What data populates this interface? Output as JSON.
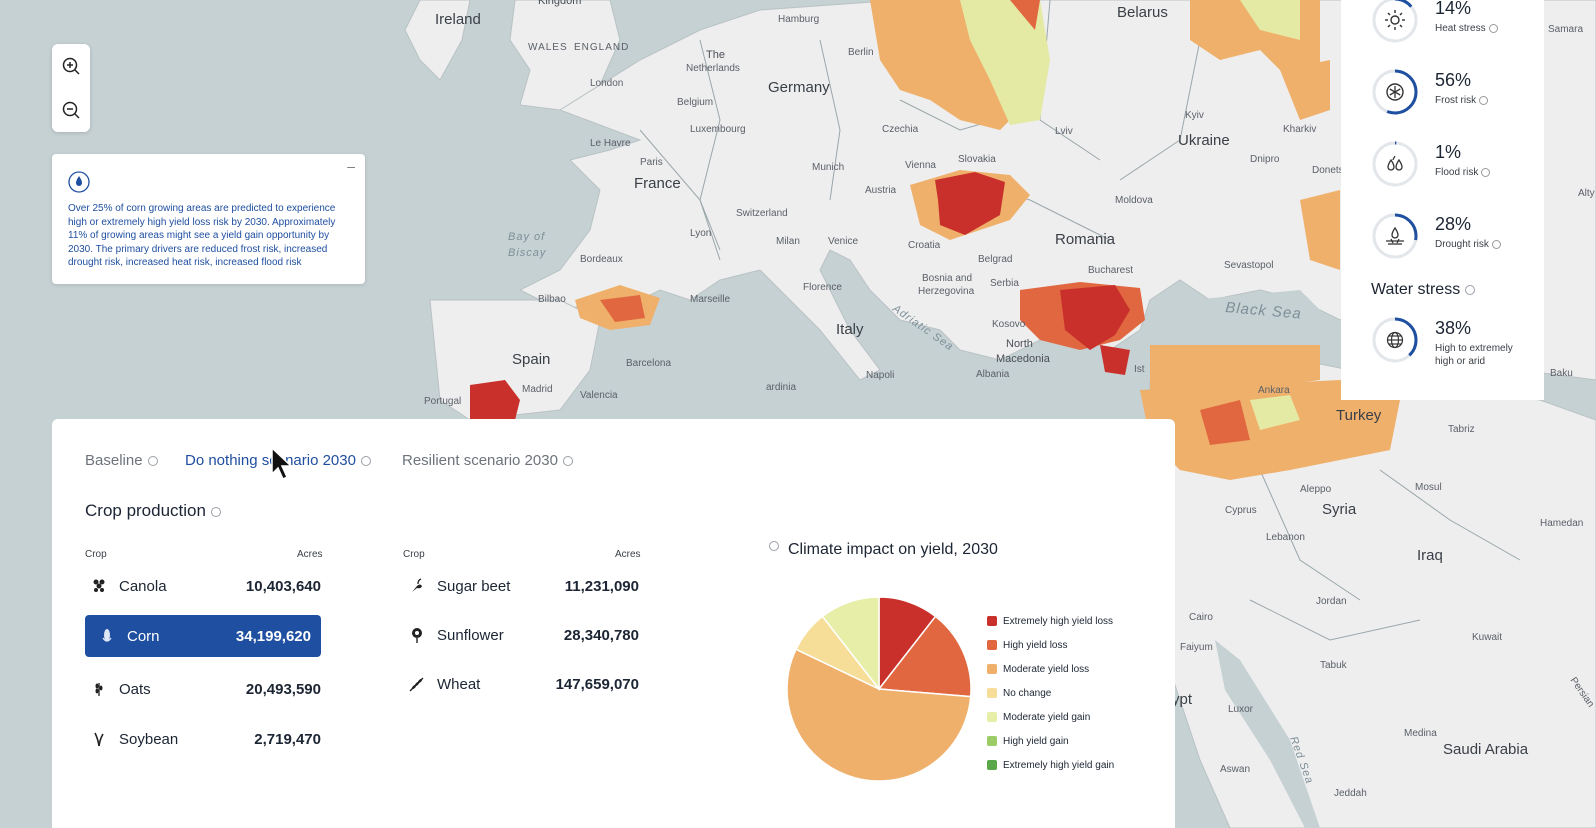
{
  "map": {
    "labels": {
      "ireland": "Ireland",
      "kingdom": "Kingdom",
      "wales": "WALES",
      "england": "ENGLAND",
      "london": "London",
      "the": "The",
      "netherlands": "Netherlands",
      "hamburg": "Hamburg",
      "berlin": "Berlin",
      "germany": "Germany",
      "belgium": "Belgium",
      "luxembourg": "Luxembourg",
      "le_havre": "Le Havre",
      "paris": "Paris",
      "france": "France",
      "munich": "Munich",
      "czechia": "Czechia",
      "vienna": "Vienna",
      "austria": "Austria",
      "slovakia": "Slovakia",
      "switzerland": "Switzerland",
      "lyon": "Lyon",
      "milan": "Milan",
      "venice": "Venice",
      "croatia": "Croatia",
      "bay_of": "Bay of",
      "biscay": "Biscay",
      "bordeaux": "Bordeaux",
      "bilbao": "Bilbao",
      "marseille": "Marseille",
      "florence": "Florence",
      "italy": "Italy",
      "spain": "Spain",
      "madrid": "Madrid",
      "portugal": "Portugal",
      "valencia": "Valencia",
      "barcelona": "Barcelona",
      "bosnia_and": "Bosnia and",
      "herzegovina": "Herzegovina",
      "serbia": "Serbia",
      "belgrade": "Belgrad",
      "romania": "Romania",
      "bucharest": "Bucharest",
      "moldova": "Moldova",
      "kosovo": "Kosovo",
      "north": "North",
      "macedonia": "Macedonia",
      "albania": "Albania",
      "belarus": "Belarus",
      "ukraine": "Ukraine",
      "lviv": "Lviv",
      "kyiv": "Kyiv",
      "kharkiv": "Kharkiv",
      "dnipro": "Dnipro",
      "donets": "Donets",
      "sevastopol": "Sevastopol",
      "black_sea": "Black Sea",
      "adriatic_sea": "Adriatic Sea",
      "samara": "Samara",
      "turkey": "Turkey",
      "ankara": "Ankara",
      "tabriz": "Tabriz",
      "mosul": "Mosul",
      "aleppo": "Aleppo",
      "syria": "Syria",
      "lebanon": "Lebanon",
      "cyprus": "Cyprus",
      "hamedan": "Hamedan",
      "iraq": "Iraq",
      "jordan": "Jordan",
      "cairo": "Cairo",
      "faiyum": "Faiyum",
      "tabuk": "Tabuk",
      "kuwait": "Kuwait",
      "egypt": "ypt",
      "luxor": "Luxor",
      "aswan": "Aswan",
      "medina": "Medina",
      "saudi_arabia": "Saudi Arabia",
      "red_sea": "Red Sea",
      "jeddah": "Jeddah",
      "baku": "Baku",
      "persian": "Persian",
      "alty": "Alty",
      "napoli": "Napoli",
      "sardinia": "ardinia",
      "istanbul": "Ist"
    }
  },
  "zoom": {
    "in_label": "Zoom in",
    "out_label": "Zoom out"
  },
  "info_card": {
    "minimize": "–",
    "text": "Over 25% of corn growing areas are predicted to experience high or extremely high yield loss risk by 2030. Approximately 11% of growing areas might see a yield gain opportunity by 2030. The primary drivers are reduced frost risk, increased drought risk, increased heat risk, increased flood risk"
  },
  "risks": [
    {
      "pct": "14%",
      "label": "Heat stress",
      "value": 0.14,
      "icon": "sun-icon"
    },
    {
      "pct": "56%",
      "label": "Frost risk",
      "value": 0.56,
      "icon": "snowflake-icon"
    },
    {
      "pct": "1%",
      "label": "Flood risk",
      "value": 0.01,
      "icon": "flood-icon"
    },
    {
      "pct": "28%",
      "label": "Drought risk",
      "value": 0.28,
      "icon": "drought-icon"
    }
  ],
  "water_stress": {
    "title": "Water stress",
    "pct": "38%",
    "label_line1": "High to extremely",
    "label_line2": "high or arid",
    "value": 0.38
  },
  "tabs": [
    {
      "label": "Baseline",
      "active": false
    },
    {
      "label": "Do nothing scenario 2030",
      "active": true
    },
    {
      "label": "Resilient scenario 2030",
      "active": false
    }
  ],
  "crop_production": {
    "title": "Crop production",
    "col_crop": "Crop",
    "col_acres": "Acres",
    "left": [
      {
        "name": "Canola",
        "acres": "10,403,640",
        "icon": "canola-icon"
      },
      {
        "name": "Corn",
        "acres": "34,199,620",
        "icon": "corn-icon",
        "selected": true
      },
      {
        "name": "Oats",
        "acres": "20,493,590",
        "icon": "oats-icon"
      },
      {
        "name": "Soybean",
        "acres": "2,719,470",
        "icon": "soybean-icon"
      }
    ],
    "right": [
      {
        "name": "Sugar beet",
        "acres": "11,231,090",
        "icon": "sugar-beet-icon"
      },
      {
        "name": "Sunflower",
        "acres": "28,340,780",
        "icon": "sunflower-icon"
      },
      {
        "name": "Wheat",
        "acres": "147,659,070",
        "icon": "wheat-icon"
      }
    ]
  },
  "chart_data": {
    "type": "pie",
    "title": "Climate impact on yield, 2030",
    "categories": [
      "Extremely high yield loss",
      "High yield loss",
      "Moderate yield loss",
      "No change",
      "Moderate yield gain",
      "High yield gain",
      "Extremely high yield gain"
    ],
    "values": [
      10,
      15,
      53,
      7,
      10,
      0,
      0
    ],
    "colors": [
      "#c9302c",
      "#e0673f",
      "#efb06b",
      "#f6dd98",
      "#e6eea8",
      "#9ccc65",
      "#5aa84a"
    ]
  }
}
